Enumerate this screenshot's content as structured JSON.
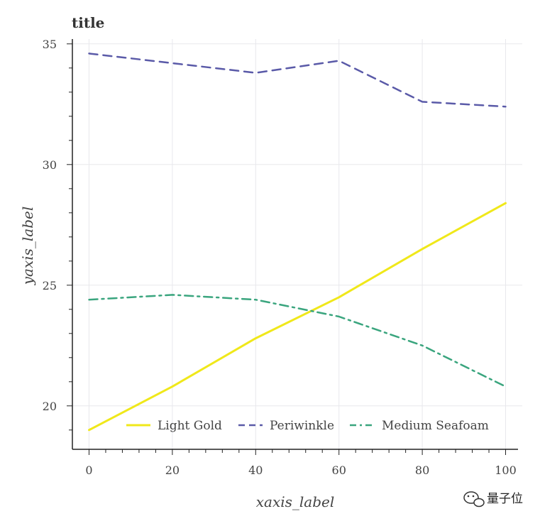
{
  "chart_data": {
    "type": "line",
    "title": "title",
    "xlabel": "xaxis_label",
    "ylabel": "yaxis_label",
    "xlim": [
      -4,
      104
    ],
    "ylim": [
      18.2,
      35.2
    ],
    "x": [
      0,
      20,
      40,
      60,
      80,
      100
    ],
    "x_ticks": [
      0,
      20,
      40,
      60,
      80,
      100
    ],
    "x_tick_labels": [
      "0",
      "20",
      "40",
      "60",
      "80",
      "100"
    ],
    "y_ticks": [
      20,
      25,
      30,
      35
    ],
    "y_tick_labels": [
      "20",
      "25",
      "30",
      "35"
    ],
    "grid": true,
    "legend_position": "bottom",
    "series": [
      {
        "name": "Light Gold",
        "color": "#f0e81a",
        "dash": "solid",
        "values": [
          19.0,
          20.8,
          22.8,
          24.5,
          26.5,
          28.4
        ]
      },
      {
        "name": "Periwinkle",
        "color": "#5a5aa8",
        "dash": "dashed",
        "values": [
          34.6,
          34.2,
          33.8,
          34.3,
          32.6,
          32.4
        ]
      },
      {
        "name": "Medium Seafoam",
        "color": "#3aa57e",
        "dash": "dashdot",
        "values": [
          24.4,
          24.6,
          24.4,
          23.7,
          22.5,
          20.8
        ]
      }
    ]
  },
  "watermark": {
    "text": "量子位",
    "icon": "wechat-icon"
  }
}
